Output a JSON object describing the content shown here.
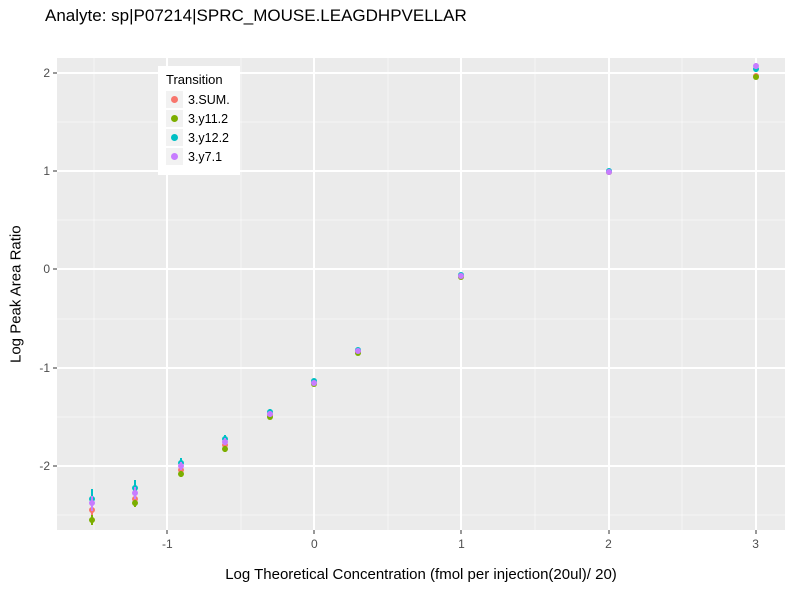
{
  "chart_data": {
    "type": "scatter",
    "title": "Analyte: sp|P07214|SPRC_MOUSE.LEAGDHPVELLAR",
    "xlabel": "Log Theoretical Concentration (fmol per injection(20ul)/ 20)",
    "ylabel": "Log Peak Area Ratio",
    "legend_title": "Transition",
    "legend_position": "inside-top-left",
    "grid": true,
    "panel_color": "#EBEBEB",
    "xlim": [
      -1.75,
      3.2
    ],
    "ylim": [
      -2.65,
      2.15
    ],
    "xticks": [
      -1,
      0,
      1,
      2,
      3
    ],
    "yticks": [
      -2,
      -1,
      0,
      1,
      2
    ],
    "series": [
      {
        "name": "3.SUM.",
        "color": "#F8766D",
        "points": [
          [
            -1.51,
            -2.45
          ],
          [
            -1.22,
            -2.33
          ],
          [
            -0.91,
            -2.04
          ],
          [
            -0.61,
            -1.79
          ],
          [
            -0.3,
            -1.48
          ],
          [
            0,
            -1.16
          ],
          [
            0.3,
            -0.84
          ],
          [
            1,
            -0.07
          ],
          [
            2,
            0.99
          ],
          [
            3,
            1.97
          ]
        ],
        "errors": [
          0.05,
          0.04,
          0.03,
          0.03,
          0.02,
          0.02,
          0.02,
          0.01,
          0.01,
          0.02
        ]
      },
      {
        "name": "3.y11.2",
        "color": "#7CAE00",
        "points": [
          [
            -1.51,
            -2.55
          ],
          [
            -1.22,
            -2.38
          ],
          [
            -0.91,
            -2.08
          ],
          [
            -0.61,
            -1.83
          ],
          [
            -0.3,
            -1.5
          ],
          [
            0,
            -1.17
          ],
          [
            0.3,
            -0.85
          ],
          [
            1,
            -0.08
          ],
          [
            2,
            0.99
          ],
          [
            3,
            1.96
          ]
        ],
        "errors": [
          0.05,
          0.04,
          0.03,
          0.03,
          0.02,
          0.02,
          0.02,
          0.01,
          0.01,
          0.02
        ]
      },
      {
        "name": "3.y12.2",
        "color": "#00BFC4",
        "points": [
          [
            -1.51,
            -2.33
          ],
          [
            -1.22,
            -2.22
          ],
          [
            -0.91,
            -1.97
          ],
          [
            -0.61,
            -1.72
          ],
          [
            -0.3,
            -1.45
          ],
          [
            0,
            -1.13
          ],
          [
            0.3,
            -0.82
          ],
          [
            1,
            -0.06
          ],
          [
            2,
            1.0
          ],
          [
            3,
            2.04
          ]
        ],
        "errors": [
          0.1,
          0.08,
          0.05,
          0.04,
          0.03,
          0.02,
          0.02,
          0.01,
          0.01,
          0.03
        ]
      },
      {
        "name": "3.y7.1",
        "color": "#C77CFF",
        "points": [
          [
            -1.51,
            -2.38
          ],
          [
            -1.22,
            -2.27
          ],
          [
            -0.91,
            -2.0
          ],
          [
            -0.61,
            -1.75
          ],
          [
            -0.3,
            -1.47
          ],
          [
            0,
            -1.15
          ],
          [
            0.3,
            -0.83
          ],
          [
            1,
            -0.07
          ],
          [
            2,
            0.99
          ],
          [
            3,
            2.07
          ]
        ],
        "errors": [
          0.08,
          0.06,
          0.04,
          0.04,
          0.03,
          0.02,
          0.02,
          0.01,
          0.01,
          0.03
        ]
      }
    ]
  }
}
